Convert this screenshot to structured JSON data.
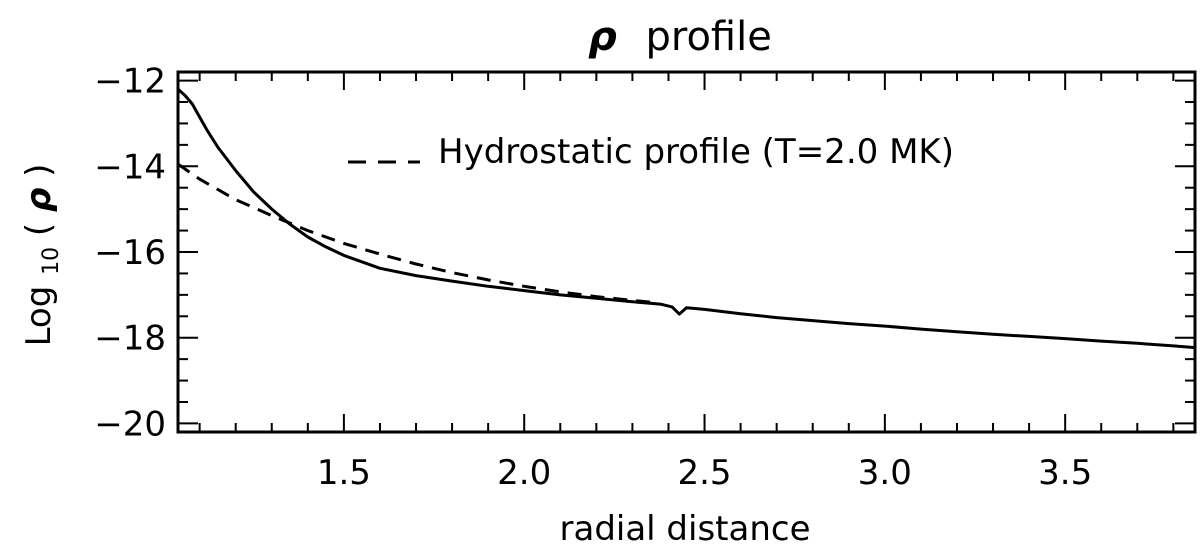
{
  "chart_data": {
    "type": "line",
    "title_symbol": "ρ",
    "title_text": "profile",
    "xlabel": "radial distance",
    "ylabel_prefix": "Log",
    "ylabel_subscript": "10",
    "ylabel_open": "(",
    "ylabel_symbol": "ρ",
    "ylabel_close": ")",
    "xlim": [
      1.04,
      3.86
    ],
    "ylim": [
      -20.2,
      -11.8
    ],
    "x_ticks": [
      1.5,
      2.0,
      2.5,
      3.0,
      3.5
    ],
    "x_tick_labels": [
      "1.5",
      "2.0",
      "2.5",
      "3.0",
      "3.5"
    ],
    "y_ticks": [
      -20,
      -18,
      -16,
      -14,
      -12
    ],
    "y_tick_labels": [
      "−20",
      "−18",
      "−16",
      "−14",
      "−12"
    ],
    "grid": false,
    "legend_position": "top-right",
    "series": [
      {
        "style": "solid",
        "color": "#000000",
        "x": [
          1.04,
          1.06,
          1.08,
          1.1,
          1.12,
          1.15,
          1.2,
          1.25,
          1.3,
          1.35,
          1.4,
          1.45,
          1.5,
          1.6,
          1.7,
          1.8,
          1.9,
          2.0,
          2.1,
          2.2,
          2.3,
          2.38,
          2.41,
          2.43,
          2.45,
          2.5,
          2.6,
          2.7,
          2.8,
          2.9,
          3.0,
          3.1,
          3.2,
          3.3,
          3.4,
          3.5,
          3.6,
          3.7,
          3.8,
          3.86
        ],
        "y": [
          -12.2,
          -12.35,
          -12.55,
          -12.85,
          -13.15,
          -13.55,
          -14.1,
          -14.6,
          -15.0,
          -15.35,
          -15.65,
          -15.88,
          -16.08,
          -16.38,
          -16.55,
          -16.68,
          -16.8,
          -16.9,
          -17.0,
          -17.08,
          -17.16,
          -17.22,
          -17.28,
          -17.45,
          -17.3,
          -17.34,
          -17.44,
          -17.53,
          -17.6,
          -17.67,
          -17.73,
          -17.8,
          -17.86,
          -17.92,
          -17.97,
          -18.02,
          -18.08,
          -18.13,
          -18.19,
          -18.23
        ]
      },
      {
        "name": "Hydrostatic profile (T=2.0 MK)",
        "style": "dashed",
        "color": "#000000",
        "x": [
          1.04,
          1.1,
          1.2,
          1.3,
          1.4,
          1.5,
          1.6,
          1.7,
          1.8,
          1.9,
          2.0,
          2.1,
          2.2,
          2.3,
          2.35
        ],
        "y": [
          -13.95,
          -14.3,
          -14.78,
          -15.15,
          -15.5,
          -15.8,
          -16.05,
          -16.28,
          -16.48,
          -16.65,
          -16.8,
          -16.93,
          -17.04,
          -17.13,
          -17.17
        ]
      }
    ]
  }
}
